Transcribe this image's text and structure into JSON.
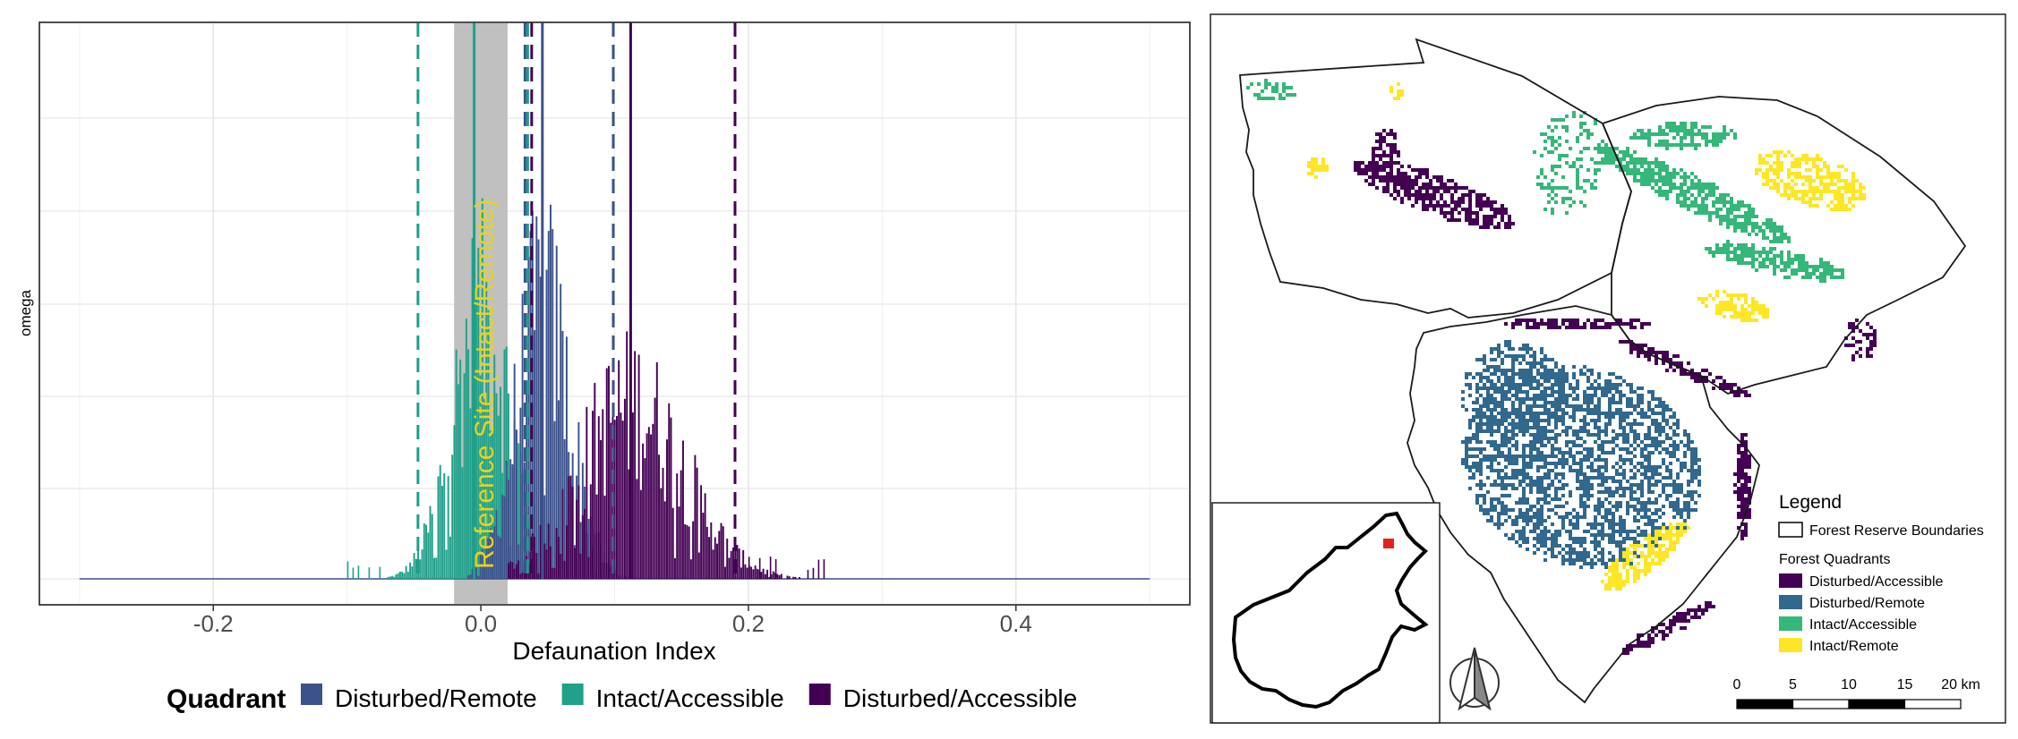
{
  "chart_data": {
    "type": "histogram",
    "xlabel": "Defaunation Index",
    "ylabel": "omega",
    "xlim": [
      -0.33,
      0.53
    ],
    "x_ticks": [
      "-0.2",
      "0.0",
      "0.2",
      "0.4"
    ],
    "x_tick_values": [
      -0.2,
      0.0,
      0.2,
      0.4
    ],
    "grid": true,
    "legend_position": "bottom",
    "legend_title": "Quadrant",
    "series": [
      {
        "name": "Disturbed/Remote",
        "color": "#3b528b",
        "approx_range": [
          -0.01,
          0.11
        ],
        "mean": 0.046,
        "sd": 0.02,
        "mean_line": 0.046,
        "ci_lines": [
          0.033,
          0.099
        ],
        "line_color": "#3b528b"
      },
      {
        "name": "Intact/Accessible",
        "color": "#21a08a",
        "approx_range": [
          -0.07,
          0.04
        ],
        "mean": 0.0,
        "sd": 0.022,
        "mean_line": -0.005,
        "ci_lines": [
          -0.047,
          0.035
        ],
        "line_color": "#1f9e89"
      },
      {
        "name": "Disturbed/Accessible",
        "color": "#440154",
        "approx_range": [
          0.02,
          0.26
        ],
        "mean": 0.112,
        "sd": 0.04,
        "mean_line": 0.112,
        "ci_lines": [
          0.038,
          0.19
        ],
        "line_color": "#440154"
      }
    ],
    "reference_band": {
      "xmin": -0.02,
      "xmax": 0.02,
      "label": "Reference Site (Intact/Remote)",
      "label_color": "#e6d41a"
    }
  },
  "map": {
    "legend_title": "Legend",
    "boundary_label": "Forest Reserve Boundaries",
    "quadrants_title": "Forest Quadrants",
    "items": [
      {
        "label": "Disturbed/Accessible",
        "color": "#440154"
      },
      {
        "label": "Disturbed/Remote",
        "color": "#31688e"
      },
      {
        "label": "Intact/Accessible",
        "color": "#35b779"
      },
      {
        "label": "Intact/Remote",
        "color": "#fde725"
      }
    ],
    "scale_labels": [
      "0",
      "5",
      "10",
      "15",
      "20 km"
    ],
    "inset_marker_color": "#e8201c"
  }
}
